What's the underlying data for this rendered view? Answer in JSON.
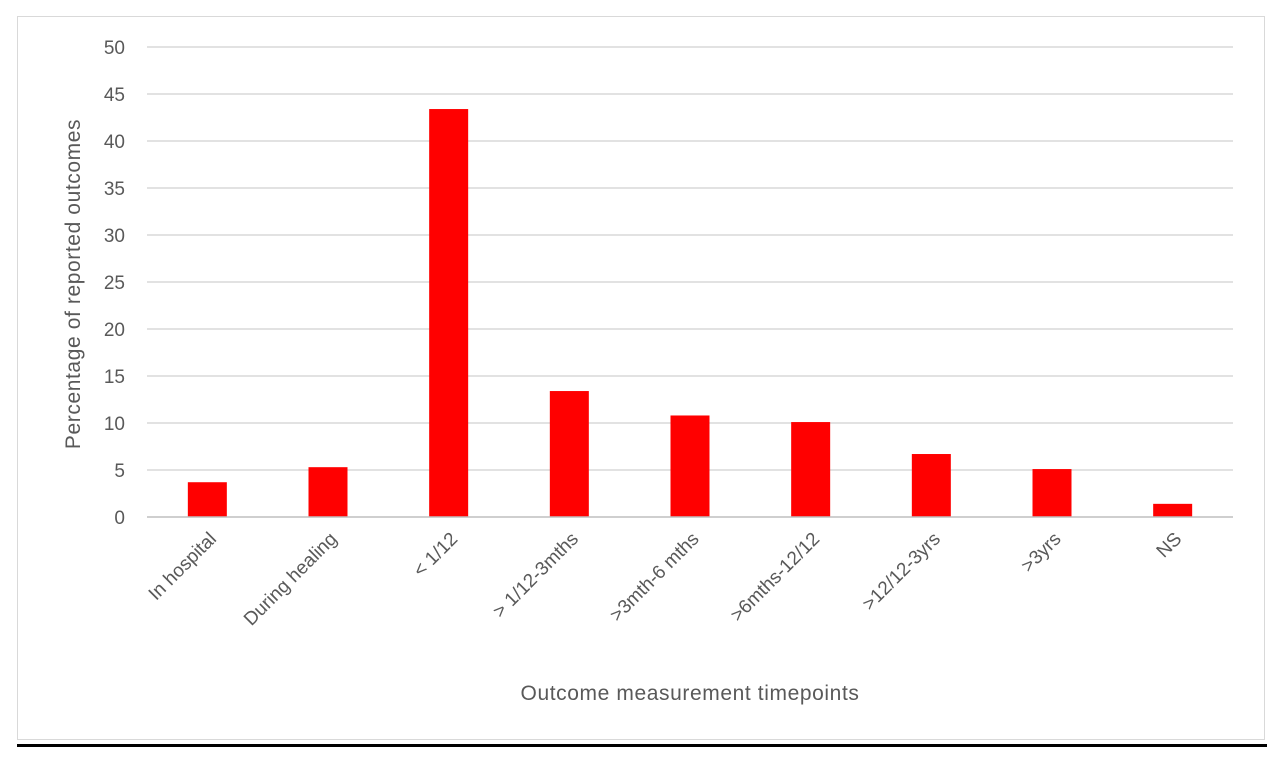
{
  "chart_data": {
    "type": "bar",
    "categories": [
      "In hospital",
      "During healing",
      "< 1/12",
      "> 1/12-3mths",
      ">3mth-6 mths",
      ">6mths-12/12",
      ">12/12-3yrs",
      ">3yrs",
      "NS"
    ],
    "values": [
      3.7,
      5.3,
      43.4,
      13.4,
      10.8,
      10.1,
      6.7,
      5.1,
      1.4
    ],
    "xlabel": "Outcome measurement timepoints",
    "ylabel": "Percentage of reported outcomes",
    "ylim": [
      0,
      50
    ],
    "yticks": [
      0,
      5,
      10,
      15,
      20,
      25,
      30,
      35,
      40,
      45,
      50
    ],
    "grid": true,
    "legend": "none",
    "colors": {
      "bar": "#ff0000",
      "grid": "#d9d9d9",
      "text": "#595959",
      "axis": "#bfbfbf"
    }
  }
}
